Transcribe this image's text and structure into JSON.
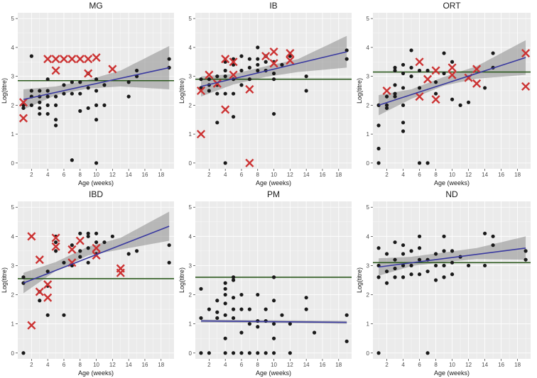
{
  "figure": {
    "xlabel": "Age (weeks)",
    "ylabel": "Log(titre)",
    "xlim": [
      0.3,
      19.6
    ],
    "ylim": [
      -0.2,
      5.2
    ],
    "xticks": [
      2,
      4,
      6,
      8,
      10,
      12,
      14,
      16,
      18
    ],
    "yticks": [
      0,
      1,
      2,
      3,
      4,
      5
    ],
    "colors": {
      "panel_bg": "#ebebeb",
      "grid": "#ffffff",
      "point": "#1a1a1a",
      "cross": "#cc3333",
      "fit_line": "#3a3aa0",
      "ci_band": "#8c8c8c",
      "threshold": "#2d5a1f"
    }
  },
  "chart_data": [
    {
      "type": "scatter",
      "title": "MG",
      "threshold": 2.85,
      "fit": {
        "x": [
          1,
          19
        ],
        "y": [
          2.2,
          3.3
        ]
      },
      "ci": {
        "x": [
          1,
          5,
          9,
          13,
          19
        ],
        "lower": [
          1.85,
          2.35,
          2.58,
          2.65,
          2.55
        ],
        "upper": [
          2.55,
          2.65,
          2.88,
          3.2,
          4.05
        ]
      },
      "points": [
        [
          1,
          2.0
        ],
        [
          1,
          1.9
        ],
        [
          2,
          3.7
        ],
        [
          2,
          2.5
        ],
        [
          2,
          2.3
        ],
        [
          2,
          2.0
        ],
        [
          3,
          2.1
        ],
        [
          3,
          1.9
        ],
        [
          3,
          1.7
        ],
        [
          3,
          2.3
        ],
        [
          3,
          2.5
        ],
        [
          4,
          2.0
        ],
        [
          4,
          1.7
        ],
        [
          4,
          2.3
        ],
        [
          4,
          2.5
        ],
        [
          4,
          2.9
        ],
        [
          5,
          1.3
        ],
        [
          5,
          1.5
        ],
        [
          5,
          2.3
        ],
        [
          5,
          2.0
        ],
        [
          6,
          2.4
        ],
        [
          6,
          2.7
        ],
        [
          7,
          2.4
        ],
        [
          7,
          2.8
        ],
        [
          7,
          0.1
        ],
        [
          8,
          2.4
        ],
        [
          8,
          1.8
        ],
        [
          8,
          2.8
        ],
        [
          9,
          1.9
        ],
        [
          9,
          2.6
        ],
        [
          9,
          3.1
        ],
        [
          10,
          1.5
        ],
        [
          10,
          2.0
        ],
        [
          10,
          2.5
        ],
        [
          10,
          2.9
        ],
        [
          10,
          0.0
        ],
        [
          11,
          2.0
        ],
        [
          11,
          2.7
        ],
        [
          14,
          2.8
        ],
        [
          14,
          2.3
        ],
        [
          15,
          3.0
        ],
        [
          15,
          3.2
        ],
        [
          19,
          3.3
        ],
        [
          19,
          3.6
        ]
      ],
      "crosses": [
        [
          1,
          1.55
        ],
        [
          1,
          2.1
        ],
        [
          4,
          3.6
        ],
        [
          5,
          3.6
        ],
        [
          5,
          3.2
        ],
        [
          6,
          3.6
        ],
        [
          7,
          3.6
        ],
        [
          8,
          3.6
        ],
        [
          9,
          3.6
        ],
        [
          10,
          3.65
        ],
        [
          9,
          3.1
        ],
        [
          12,
          3.25
        ]
      ]
    },
    {
      "type": "scatter",
      "title": "IB",
      "threshold": 2.9,
      "fit": {
        "x": [
          1,
          19
        ],
        "y": [
          2.65,
          3.85
        ]
      },
      "ci": {
        "x": [
          1,
          5,
          9,
          13,
          19
        ],
        "lower": [
          2.3,
          2.72,
          2.98,
          3.15,
          3.3
        ],
        "upper": [
          3.0,
          3.08,
          3.35,
          3.6,
          4.4
        ]
      },
      "points": [
        [
          1,
          2.6
        ],
        [
          1,
          2.9
        ],
        [
          2,
          2.9
        ],
        [
          2,
          2.5
        ],
        [
          2,
          2.7
        ],
        [
          3,
          2.7
        ],
        [
          3,
          3.0
        ],
        [
          3,
          2.4
        ],
        [
          3,
          1.4
        ],
        [
          4,
          3.2
        ],
        [
          4,
          3.5
        ],
        [
          4,
          2.4
        ],
        [
          4,
          3.0
        ],
        [
          4,
          0.0
        ],
        [
          5,
          2.9
        ],
        [
          5,
          3.4
        ],
        [
          5,
          3.6
        ],
        [
          5,
          1.6
        ],
        [
          5,
          2.4
        ],
        [
          6,
          3.7
        ],
        [
          6,
          3.2
        ],
        [
          6,
          2.7
        ],
        [
          7,
          3.6
        ],
        [
          7,
          3.3
        ],
        [
          7,
          2.9
        ],
        [
          8,
          3.6
        ],
        [
          8,
          4.0
        ],
        [
          8,
          3.4
        ],
        [
          8,
          3.2
        ],
        [
          9,
          3.2
        ],
        [
          9,
          3.7
        ],
        [
          9,
          3.5
        ],
        [
          10,
          3.1
        ],
        [
          10,
          3.5
        ],
        [
          10,
          2.9
        ],
        [
          10,
          1.7
        ],
        [
          11,
          3.4
        ],
        [
          12,
          3.7
        ],
        [
          14,
          3.0
        ],
        [
          14,
          2.5
        ],
        [
          19,
          3.6
        ],
        [
          19,
          3.9
        ]
      ],
      "crosses": [
        [
          1,
          1.0
        ],
        [
          1,
          2.5
        ],
        [
          2,
          3.05
        ],
        [
          3,
          2.75
        ],
        [
          4,
          3.6
        ],
        [
          4,
          1.85
        ],
        [
          5,
          3.5
        ],
        [
          5,
          3.05
        ],
        [
          7,
          2.55
        ],
        [
          7,
          0.0
        ],
        [
          9,
          3.7
        ],
        [
          10,
          3.85
        ],
        [
          10,
          3.45
        ],
        [
          12,
          3.55
        ],
        [
          12,
          3.8
        ]
      ]
    },
    {
      "type": "scatter",
      "title": "ORT",
      "threshold": 3.15,
      "fit": {
        "x": [
          1,
          19
        ],
        "y": [
          2.0,
          3.65
        ]
      },
      "ci": {
        "x": [
          1,
          5,
          9,
          13,
          19
        ],
        "lower": [
          1.65,
          2.22,
          2.68,
          2.92,
          3.05
        ],
        "upper": [
          2.35,
          2.55,
          2.98,
          3.35,
          4.25
        ]
      },
      "points": [
        [
          1,
          2.0
        ],
        [
          1,
          1.3
        ],
        [
          1,
          0.5
        ],
        [
          1,
          0.0
        ],
        [
          2,
          2.3
        ],
        [
          2,
          2.0
        ],
        [
          2,
          1.9
        ],
        [
          3,
          3.2
        ],
        [
          3,
          3.3
        ],
        [
          3,
          2.7
        ],
        [
          3,
          2.4
        ],
        [
          3,
          2.3
        ],
        [
          4,
          3.4
        ],
        [
          4,
          3.1
        ],
        [
          4,
          2.6
        ],
        [
          4,
          1.4
        ],
        [
          4,
          1.1
        ],
        [
          4,
          2.0
        ],
        [
          5,
          3.9
        ],
        [
          5,
          3.3
        ],
        [
          5,
          3.0
        ],
        [
          6,
          3.2
        ],
        [
          6,
          2.6
        ],
        [
          6,
          0.0
        ],
        [
          7,
          3.2
        ],
        [
          7,
          0.0
        ],
        [
          8,
          2.8
        ],
        [
          8,
          2.4
        ],
        [
          9,
          3.1
        ],
        [
          9,
          3.8
        ],
        [
          10,
          3.5
        ],
        [
          10,
          2.2
        ],
        [
          11,
          2.0
        ],
        [
          12,
          2.1
        ],
        [
          14,
          2.6
        ],
        [
          15,
          3.8
        ],
        [
          15,
          3.3
        ]
      ],
      "crosses": [
        [
          2,
          2.5
        ],
        [
          6,
          3.5
        ],
        [
          6,
          2.3
        ],
        [
          7,
          2.9
        ],
        [
          8,
          3.2
        ],
        [
          8,
          2.2
        ],
        [
          10,
          3.3
        ],
        [
          10,
          3.05
        ],
        [
          12,
          2.95
        ],
        [
          13,
          3.25
        ],
        [
          13,
          2.75
        ],
        [
          19,
          3.8
        ],
        [
          19,
          2.65
        ]
      ]
    },
    {
      "type": "scatter",
      "title": "IBD",
      "threshold": 2.55,
      "fit": {
        "x": [
          1,
          19
        ],
        "y": [
          2.4,
          4.35
        ]
      },
      "ci": {
        "x": [
          1,
          5,
          9,
          13,
          19
        ],
        "lower": [
          2.05,
          2.82,
          3.35,
          3.55,
          3.85
        ],
        "upper": [
          2.75,
          3.12,
          3.65,
          3.95,
          4.85
        ]
      },
      "points": [
        [
          1,
          2.6
        ],
        [
          1,
          2.4
        ],
        [
          1,
          0.0
        ],
        [
          3,
          2.1
        ],
        [
          3,
          1.8
        ],
        [
          4,
          2.3
        ],
        [
          4,
          1.3
        ],
        [
          4,
          2.8
        ],
        [
          5,
          4.0
        ],
        [
          5,
          3.8
        ],
        [
          5,
          3.5
        ],
        [
          6,
          3.1
        ],
        [
          6,
          1.3
        ],
        [
          7,
          3.0
        ],
        [
          7,
          3.7
        ],
        [
          8,
          4.1
        ],
        [
          8,
          3.5
        ],
        [
          8,
          3.3
        ],
        [
          9,
          4.0
        ],
        [
          9,
          4.1
        ],
        [
          9,
          3.6
        ],
        [
          9,
          3.1
        ],
        [
          10,
          4.1
        ],
        [
          10,
          3.8
        ],
        [
          10,
          3.4
        ],
        [
          11,
          3.8
        ],
        [
          12,
          4.0
        ],
        [
          14,
          3.4
        ],
        [
          15,
          3.5
        ],
        [
          19,
          3.7
        ],
        [
          19,
          3.1
        ]
      ],
      "crosses": [
        [
          2,
          4.0
        ],
        [
          2,
          0.95
        ],
        [
          3,
          3.2
        ],
        [
          3,
          2.1
        ],
        [
          4,
          2.35
        ],
        [
          4,
          1.9
        ],
        [
          5,
          3.95
        ],
        [
          5,
          3.65
        ],
        [
          7,
          3.1
        ],
        [
          7,
          3.55
        ],
        [
          8,
          3.85
        ],
        [
          10,
          3.6
        ],
        [
          10,
          3.35
        ],
        [
          13,
          2.9
        ],
        [
          13,
          2.75
        ]
      ]
    },
    {
      "type": "scatter",
      "title": "PM",
      "threshold": 2.6,
      "fit": {
        "x": [
          1,
          19
        ],
        "y": [
          1.1,
          1.05
        ]
      },
      "ci": {
        "x": [
          1,
          19
        ],
        "lower": [
          1.05,
          1.0
        ],
        "upper": [
          1.15,
          1.1
        ]
      },
      "points": [
        [
          1,
          2.2
        ],
        [
          1,
          1.2
        ],
        [
          1,
          0.0
        ],
        [
          2,
          1.5
        ],
        [
          2,
          0.0
        ],
        [
          3,
          1.8
        ],
        [
          3,
          1.4
        ],
        [
          3,
          1.2
        ],
        [
          4,
          2.4
        ],
        [
          4,
          2.2
        ],
        [
          4,
          2.0
        ],
        [
          4,
          1.7
        ],
        [
          4,
          1.3
        ],
        [
          4,
          0.5
        ],
        [
          4,
          0.0
        ],
        [
          5,
          2.6
        ],
        [
          5,
          2.5
        ],
        [
          5,
          1.9
        ],
        [
          5,
          1.5
        ],
        [
          5,
          1.2
        ],
        [
          5,
          0.0
        ],
        [
          6,
          2.0
        ],
        [
          6,
          1.5
        ],
        [
          6,
          0.7
        ],
        [
          6,
          0.0
        ],
        [
          7,
          1.5
        ],
        [
          7,
          1.0
        ],
        [
          7,
          0.0
        ],
        [
          8,
          2.0
        ],
        [
          8,
          1.1
        ],
        [
          8,
          0.9
        ],
        [
          8,
          0.0
        ],
        [
          9,
          1.5
        ],
        [
          9,
          1.1
        ],
        [
          9,
          0.0
        ],
        [
          10,
          2.6
        ],
        [
          10,
          1.8
        ],
        [
          10,
          1.0
        ],
        [
          10,
          0.5
        ],
        [
          10,
          0.0
        ],
        [
          11,
          1.3
        ],
        [
          12,
          1.0
        ],
        [
          12,
          0.0
        ],
        [
          14,
          1.9
        ],
        [
          14,
          1.5
        ],
        [
          15,
          0.7
        ],
        [
          19,
          1.3
        ],
        [
          19,
          0.4
        ]
      ],
      "crosses": []
    },
    {
      "type": "scatter",
      "title": "ND",
      "threshold": 3.1,
      "fit": {
        "x": [
          1,
          19
        ],
        "y": [
          2.95,
          3.6
        ]
      },
      "ci": {
        "x": [
          1,
          5,
          9,
          13,
          19
        ],
        "lower": [
          2.65,
          2.98,
          3.12,
          3.22,
          3.2
        ],
        "upper": [
          3.25,
          3.3,
          3.45,
          3.6,
          4.0
        ]
      },
      "points": [
        [
          1,
          3.6
        ],
        [
          1,
          3.0
        ],
        [
          1,
          2.6
        ],
        [
          1,
          0.0
        ],
        [
          2,
          3.4
        ],
        [
          2,
          2.8
        ],
        [
          2,
          2.4
        ],
        [
          3,
          3.8
        ],
        [
          3,
          3.2
        ],
        [
          3,
          2.9
        ],
        [
          3,
          2.6
        ],
        [
          4,
          3.7
        ],
        [
          4,
          3.4
        ],
        [
          4,
          3.0
        ],
        [
          4,
          2.6
        ],
        [
          5,
          3.5
        ],
        [
          5,
          3.0
        ],
        [
          5,
          2.7
        ],
        [
          6,
          4.0
        ],
        [
          6,
          3.6
        ],
        [
          6,
          3.2
        ],
        [
          6,
          2.7
        ],
        [
          7,
          3.2
        ],
        [
          7,
          2.8
        ],
        [
          7,
          0.0
        ],
        [
          8,
          3.4
        ],
        [
          8,
          3.0
        ],
        [
          8,
          2.5
        ],
        [
          9,
          4.0
        ],
        [
          9,
          3.5
        ],
        [
          9,
          3.0
        ],
        [
          9,
          2.6
        ],
        [
          10,
          3.5
        ],
        [
          10,
          3.1
        ],
        [
          10,
          2.7
        ],
        [
          11,
          3.3
        ],
        [
          12,
          3.0
        ],
        [
          14,
          4.1
        ],
        [
          14,
          3.0
        ],
        [
          15,
          4.0
        ],
        [
          15,
          3.7
        ],
        [
          19,
          3.5
        ],
        [
          19,
          3.2
        ]
      ],
      "crosses": []
    }
  ]
}
